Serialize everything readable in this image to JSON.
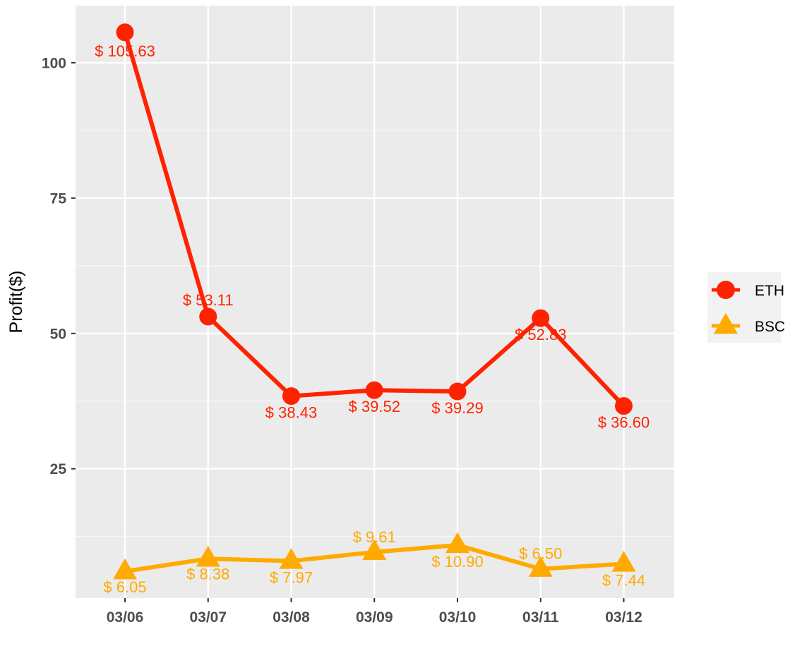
{
  "chart_data": {
    "type": "line",
    "title": "",
    "xlabel": "",
    "ylabel": "Profit($)",
    "categories": [
      "03/06",
      "03/07",
      "03/08",
      "03/09",
      "03/10",
      "03/11",
      "03/12"
    ],
    "yticks": [
      25,
      50,
      75,
      100
    ],
    "ylim": [
      0,
      110
    ],
    "grid": true,
    "legend_position": "right",
    "series": [
      {
        "name": "ETH",
        "color": "#ff2200",
        "marker": "circle",
        "values": [
          105.63,
          53.11,
          38.43,
          39.52,
          39.29,
          52.83,
          36.6
        ],
        "labels": [
          "$ 105.63",
          "$ 53.11",
          "$ 38.43",
          "$ 39.52",
          "$ 39.29",
          "$ 52.83",
          "$ 36.60"
        ]
      },
      {
        "name": "BSC",
        "color": "#ffaa00",
        "marker": "triangle",
        "values": [
          6.05,
          8.38,
          7.97,
          9.61,
          10.9,
          6.5,
          7.44
        ],
        "labels": [
          "$ 6.05",
          "$ 8.38",
          "$ 7.97",
          "$ 9.61",
          "$ 10.90",
          "$ 6.50",
          "$ 7.44"
        ]
      }
    ]
  }
}
